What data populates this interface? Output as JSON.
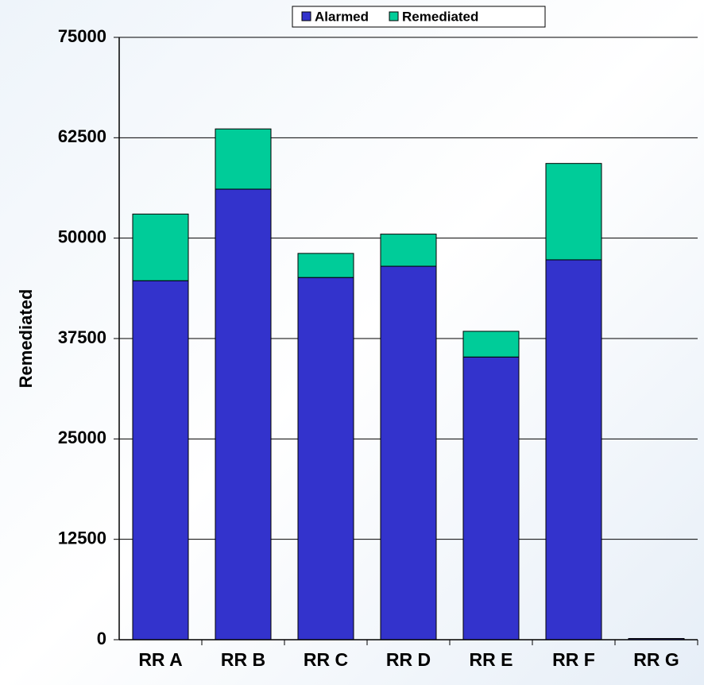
{
  "chart_data": {
    "type": "stacked_bar",
    "y_label": "Remediated",
    "categories": [
      "RR A",
      "RR B",
      "RR C",
      "RR D",
      "RR E",
      "RR F",
      "RR G"
    ],
    "series": [
      {
        "name": "Alarmed",
        "color": "#3333cc",
        "values": [
          44700,
          56100,
          45100,
          46500,
          35200,
          47300,
          150
        ]
      },
      {
        "name": "Remediated",
        "color": "#00cc99",
        "values": [
          8300,
          7500,
          3000,
          4000,
          3200,
          12000,
          0
        ]
      }
    ],
    "ylim": [
      0,
      75000
    ],
    "yticks": [
      0,
      12500,
      25000,
      37500,
      50000,
      62500,
      75000
    ],
    "grid": true,
    "legend": "top"
  }
}
